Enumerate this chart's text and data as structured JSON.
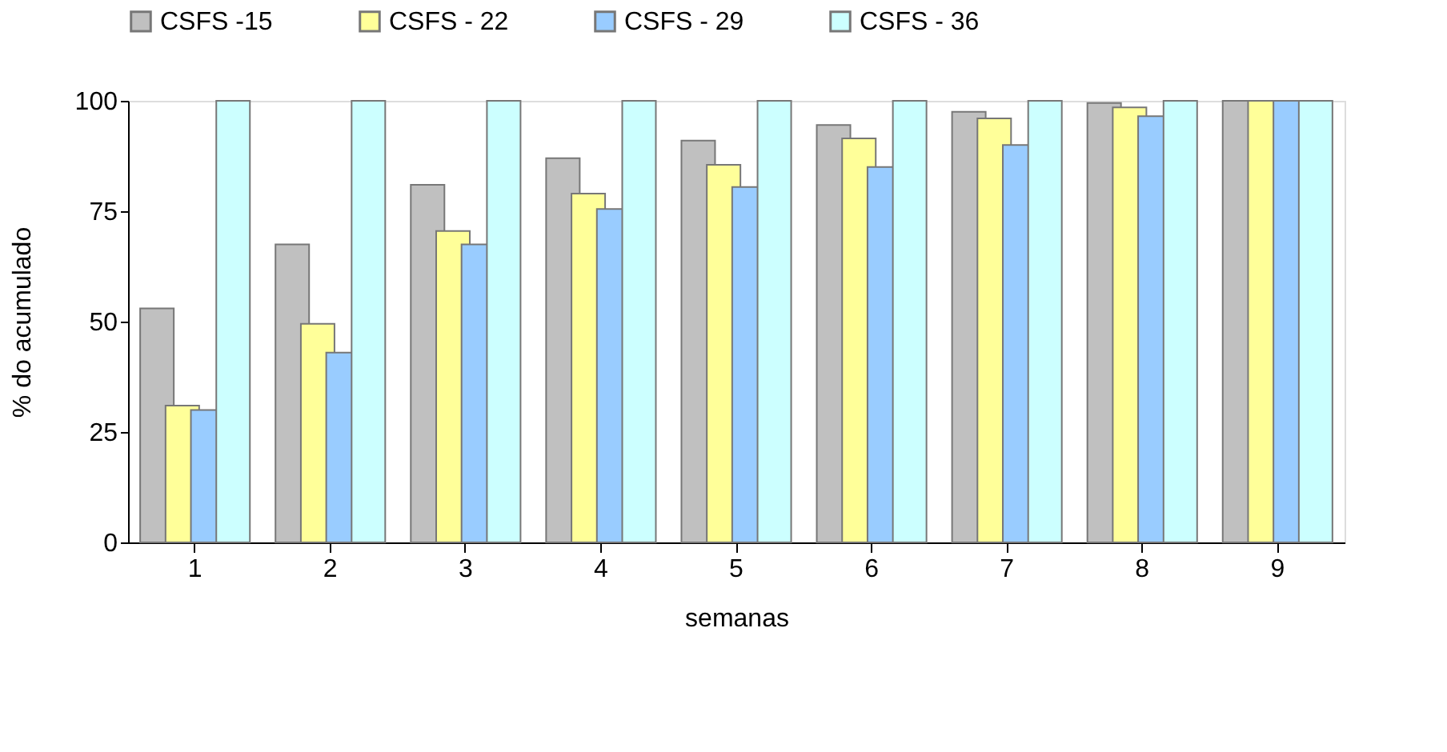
{
  "chart_data": {
    "type": "bar",
    "xlabel": "semanas",
    "ylabel": "% do acumulado",
    "categories": [
      "1",
      "2",
      "3",
      "4",
      "5",
      "6",
      "7",
      "8",
      "9"
    ],
    "series": [
      {
        "name": "CSFS -15",
        "color": "#c0c0c0",
        "values": [
          53,
          67.5,
          81,
          87,
          91,
          94.5,
          97.5,
          99.5,
          100
        ]
      },
      {
        "name": "CSFS - 22",
        "color": "#ffff99",
        "values": [
          31,
          49.5,
          70.5,
          79,
          85.5,
          91.5,
          96,
          98.5,
          100
        ]
      },
      {
        "name": "CSFS - 29",
        "color": "#99ccff",
        "values": [
          30,
          43,
          67.5,
          75.5,
          80.5,
          85,
          90,
          96.5,
          100
        ]
      },
      {
        "name": "CSFS - 36",
        "color": "#ccffff",
        "values": [
          100,
          100,
          100,
          100,
          100,
          100,
          100,
          100,
          100
        ]
      }
    ],
    "ylim": [
      0,
      100
    ],
    "yticks": [
      0,
      25,
      50,
      75,
      100
    ],
    "grid": false,
    "legend": "top"
  }
}
